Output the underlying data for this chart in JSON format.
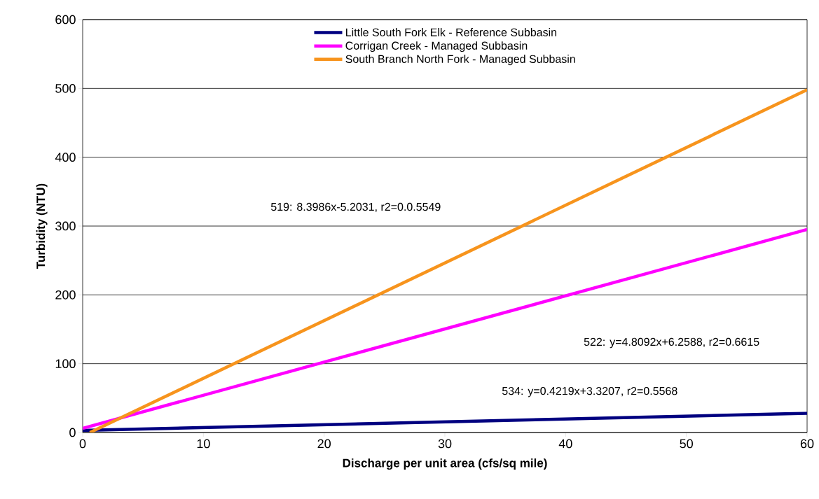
{
  "chart_data": {
    "type": "line",
    "xlabel": "Discharge per unit area (cfs/sq mile)",
    "ylabel": "Turbidity (NTU)",
    "xlim": [
      0,
      60
    ],
    "xticks": [
      0,
      10,
      20,
      30,
      40,
      50,
      60
    ],
    "ylim": [
      0,
      600
    ],
    "yticks": [
      0,
      100,
      200,
      300,
      400,
      500,
      600
    ],
    "grid": "y",
    "legend": "top",
    "marker": "none",
    "line_style": "solid",
    "series": [
      {
        "name": "Little South Fork Elk - Reference Subbasin",
        "color": "#000080",
        "x": [
          0,
          60
        ],
        "values": [
          3,
          28
        ]
      },
      {
        "name": "Corrigan Creek - Managed Subbasin",
        "color": "#ff00ff",
        "x": [
          0,
          60
        ],
        "values": [
          6,
          295
        ]
      },
      {
        "name": "South Branch North Fork - Managed Subbasin",
        "color": "#f7941d",
        "x": [
          0.6,
          60
        ],
        "values": [
          0,
          498
        ]
      }
    ],
    "annotations": [
      "519:  8.3986x-5.2031, r2=0.0.5549",
      "522:  y=4.8092x+6.2588, r2=0.6615",
      "534:  y=0.4219x+3.3207, r2=0.5568"
    ]
  }
}
